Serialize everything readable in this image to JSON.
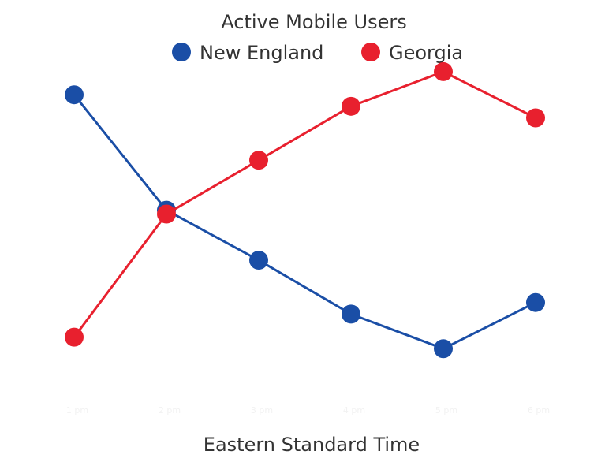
{
  "chart_data": {
    "type": "line",
    "title": "Active Mobile Users",
    "xlabel": "Eastern Standard Time",
    "ylabel": "",
    "categories": [
      "1 pm",
      "2 pm",
      "3 pm",
      "4 pm",
      "5 pm",
      "6 pm"
    ],
    "ylim": [
      0,
      100
    ],
    "grid": false,
    "legend_position": "top",
    "series": [
      {
        "name": "New England",
        "color": "#1a4ea6",
        "values": [
          85,
          55,
          42,
          28,
          19,
          31
        ]
      },
      {
        "name": "Georgia",
        "color": "#e8202e",
        "values": [
          22,
          54,
          68,
          82,
          91,
          79
        ]
      }
    ]
  }
}
